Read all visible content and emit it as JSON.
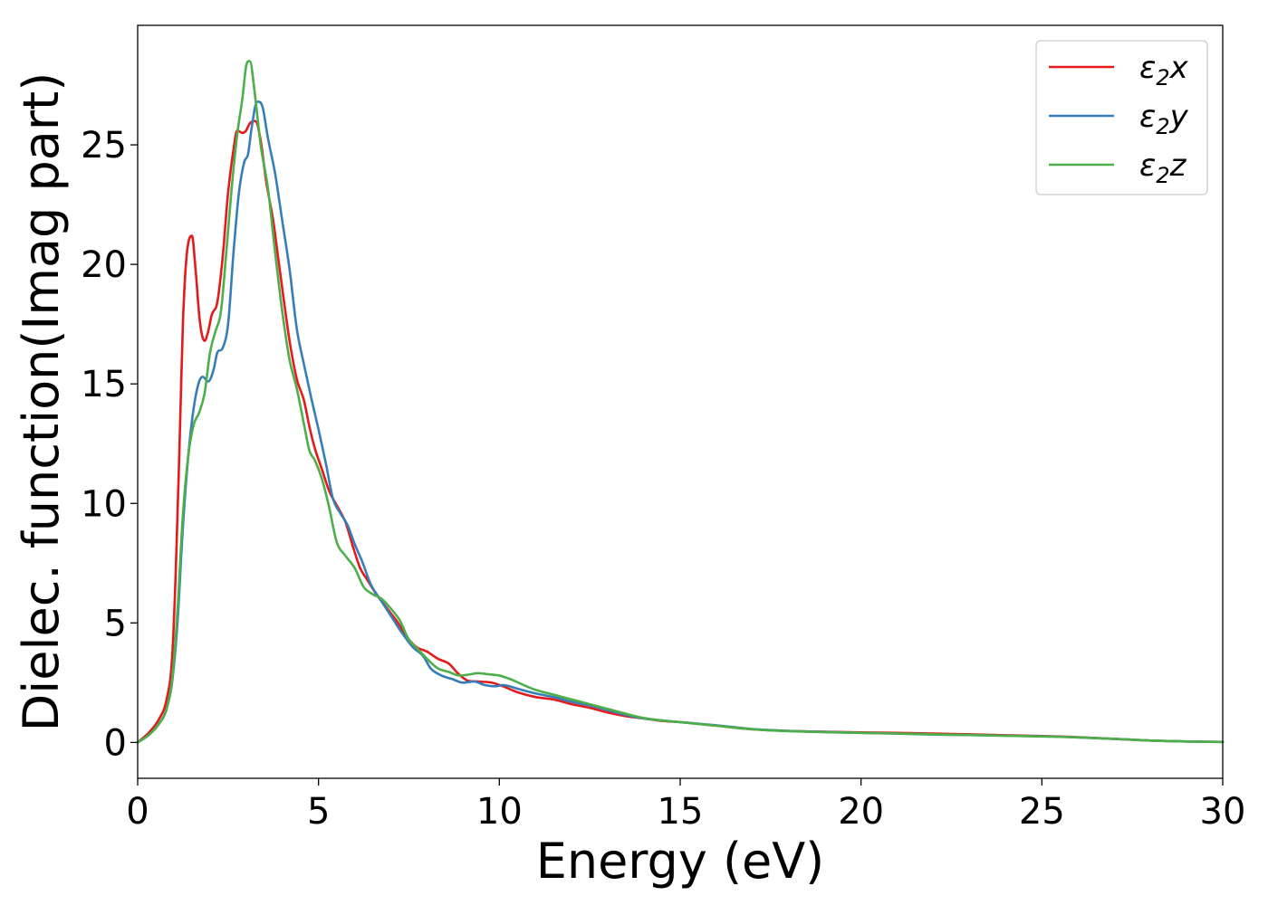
{
  "chart_data": {
    "type": "line",
    "title": "",
    "xlabel": "Energy (eV)",
    "ylabel": "Dielec. function(Imag part)",
    "xlim": [
      0,
      30
    ],
    "ylim": [
      -1.5,
      30
    ],
    "xticks": [
      0,
      5,
      10,
      15,
      20,
      25,
      30
    ],
    "yticks": [
      0,
      5,
      10,
      15,
      20,
      25
    ],
    "grid": false,
    "legend_position": "top-right",
    "series": [
      {
        "name": "ε2x",
        "color": "#e41a1c",
        "points": [
          [
            0,
            0
          ],
          [
            0.3,
            0.4
          ],
          [
            0.6,
            1.0
          ],
          [
            0.8,
            1.8
          ],
          [
            0.95,
            3.5
          ],
          [
            1.05,
            7
          ],
          [
            1.15,
            12
          ],
          [
            1.25,
            17.5
          ],
          [
            1.35,
            20.3
          ],
          [
            1.5,
            21.2
          ],
          [
            1.6,
            19.8
          ],
          [
            1.72,
            17.6
          ],
          [
            1.85,
            16.8
          ],
          [
            1.95,
            17.2
          ],
          [
            2.05,
            17.9
          ],
          [
            2.2,
            18.4
          ],
          [
            2.35,
            20.3
          ],
          [
            2.5,
            23
          ],
          [
            2.65,
            24.8
          ],
          [
            2.75,
            25.6
          ],
          [
            2.9,
            25.5
          ],
          [
            3.0,
            25.6
          ],
          [
            3.1,
            25.9
          ],
          [
            3.25,
            26.0
          ],
          [
            3.4,
            25.2
          ],
          [
            3.55,
            23.5
          ],
          [
            3.75,
            21.8
          ],
          [
            3.9,
            20.1
          ],
          [
            4.05,
            18.4
          ],
          [
            4.2,
            16.8
          ],
          [
            4.4,
            15.2
          ],
          [
            4.6,
            14.3
          ],
          [
            4.75,
            13.2
          ],
          [
            4.9,
            12.3
          ],
          [
            5.1,
            11.4
          ],
          [
            5.3,
            10.5
          ],
          [
            5.55,
            9.8
          ],
          [
            5.75,
            9.2
          ],
          [
            5.95,
            8.2
          ],
          [
            6.15,
            7.3
          ],
          [
            6.35,
            6.8
          ],
          [
            6.6,
            6.2
          ],
          [
            6.9,
            5.6
          ],
          [
            7.2,
            5.0
          ],
          [
            7.45,
            4.4
          ],
          [
            7.7,
            4.0
          ],
          [
            8.0,
            3.8
          ],
          [
            8.3,
            3.5
          ],
          [
            8.6,
            3.3
          ],
          [
            8.85,
            2.9
          ],
          [
            9.1,
            2.6
          ],
          [
            9.4,
            2.55
          ],
          [
            9.8,
            2.5
          ],
          [
            10.1,
            2.35
          ],
          [
            10.5,
            2.1
          ],
          [
            11,
            1.9
          ],
          [
            11.5,
            1.8
          ],
          [
            12,
            1.6
          ],
          [
            12.5,
            1.45
          ],
          [
            13,
            1.25
          ],
          [
            13.5,
            1.1
          ],
          [
            14,
            1.0
          ],
          [
            14.5,
            0.9
          ],
          [
            15,
            0.85
          ],
          [
            16,
            0.7
          ],
          [
            17,
            0.55
          ],
          [
            18,
            0.48
          ],
          [
            19,
            0.45
          ],
          [
            20,
            0.42
          ],
          [
            21,
            0.4
          ],
          [
            22,
            0.37
          ],
          [
            23,
            0.34
          ],
          [
            24,
            0.3
          ],
          [
            25,
            0.27
          ],
          [
            26,
            0.22
          ],
          [
            27,
            0.15
          ],
          [
            28,
            0.08
          ],
          [
            29,
            0.04
          ],
          [
            30,
            0.02
          ]
        ]
      },
      {
        "name": "ε2y",
        "color": "#377eb8",
        "points": [
          [
            0,
            0
          ],
          [
            0.3,
            0.3
          ],
          [
            0.6,
            0.8
          ],
          [
            0.8,
            1.4
          ],
          [
            0.95,
            2.5
          ],
          [
            1.1,
            5.0
          ],
          [
            1.25,
            9.0
          ],
          [
            1.4,
            12.0
          ],
          [
            1.55,
            14.0
          ],
          [
            1.7,
            15.1
          ],
          [
            1.8,
            15.3
          ],
          [
            1.95,
            15.1
          ],
          [
            2.1,
            15.6
          ],
          [
            2.2,
            16.3
          ],
          [
            2.35,
            16.5
          ],
          [
            2.5,
            17.5
          ],
          [
            2.65,
            20.5
          ],
          [
            2.8,
            23.0
          ],
          [
            2.95,
            24.3
          ],
          [
            3.05,
            24.6
          ],
          [
            3.15,
            25.7
          ],
          [
            3.3,
            26.8
          ],
          [
            3.45,
            26.6
          ],
          [
            3.6,
            25.3
          ],
          [
            3.8,
            23.8
          ],
          [
            4.0,
            21.8
          ],
          [
            4.2,
            19.8
          ],
          [
            4.4,
            17.3
          ],
          [
            4.6,
            15.8
          ],
          [
            4.8,
            14.4
          ],
          [
            5.0,
            13.1
          ],
          [
            5.2,
            11.7
          ],
          [
            5.4,
            10.2
          ],
          [
            5.6,
            9.6
          ],
          [
            5.8,
            9.1
          ],
          [
            6.0,
            8.3
          ],
          [
            6.2,
            7.6
          ],
          [
            6.45,
            6.6
          ],
          [
            6.7,
            6.0
          ],
          [
            7.0,
            5.3
          ],
          [
            7.3,
            4.6
          ],
          [
            7.6,
            4.0
          ],
          [
            7.9,
            3.6
          ],
          [
            8.1,
            3.1
          ],
          [
            8.4,
            2.8
          ],
          [
            8.7,
            2.65
          ],
          [
            9.0,
            2.5
          ],
          [
            9.3,
            2.55
          ],
          [
            9.6,
            2.4
          ],
          [
            9.9,
            2.35
          ],
          [
            10.1,
            2.4
          ],
          [
            10.5,
            2.25
          ],
          [
            11,
            2.05
          ],
          [
            11.5,
            1.9
          ],
          [
            12,
            1.7
          ],
          [
            12.5,
            1.55
          ],
          [
            13,
            1.35
          ],
          [
            13.5,
            1.15
          ],
          [
            14,
            1.0
          ],
          [
            14.5,
            0.92
          ],
          [
            15,
            0.85
          ],
          [
            16,
            0.72
          ],
          [
            17,
            0.56
          ],
          [
            18,
            0.48
          ],
          [
            19,
            0.44
          ],
          [
            20,
            0.4
          ],
          [
            21,
            0.37
          ],
          [
            22,
            0.33
          ],
          [
            23,
            0.31
          ],
          [
            24,
            0.28
          ],
          [
            25,
            0.26
          ],
          [
            26,
            0.21
          ],
          [
            27,
            0.15
          ],
          [
            28,
            0.08
          ],
          [
            29,
            0.04
          ],
          [
            30,
            0.02
          ]
        ]
      },
      {
        "name": "ε2z",
        "color": "#4daf4a",
        "points": [
          [
            0,
            0
          ],
          [
            0.3,
            0.3
          ],
          [
            0.6,
            0.8
          ],
          [
            0.8,
            1.4
          ],
          [
            0.95,
            2.6
          ],
          [
            1.1,
            5.5
          ],
          [
            1.25,
            9.5
          ],
          [
            1.4,
            12.0
          ],
          [
            1.55,
            13.3
          ],
          [
            1.7,
            13.8
          ],
          [
            1.85,
            14.6
          ],
          [
            2.0,
            16.3
          ],
          [
            2.15,
            17.2
          ],
          [
            2.3,
            18.0
          ],
          [
            2.45,
            20.5
          ],
          [
            2.6,
            23.2
          ],
          [
            2.75,
            25.4
          ],
          [
            2.9,
            27.0
          ],
          [
            3.0,
            28.3
          ],
          [
            3.1,
            28.5
          ],
          [
            3.25,
            27.0
          ],
          [
            3.4,
            25.0
          ],
          [
            3.6,
            23.2
          ],
          [
            3.8,
            20.5
          ],
          [
            4.0,
            18.0
          ],
          [
            4.2,
            16.0
          ],
          [
            4.4,
            14.8
          ],
          [
            4.6,
            13.3
          ],
          [
            4.75,
            12.2
          ],
          [
            4.9,
            11.8
          ],
          [
            5.1,
            11.0
          ],
          [
            5.3,
            9.8
          ],
          [
            5.5,
            8.4
          ],
          [
            5.75,
            7.8
          ],
          [
            6.0,
            7.3
          ],
          [
            6.25,
            6.5
          ],
          [
            6.5,
            6.2
          ],
          [
            6.75,
            6.0
          ],
          [
            7.0,
            5.6
          ],
          [
            7.25,
            5.1
          ],
          [
            7.5,
            4.3
          ],
          [
            7.75,
            3.9
          ],
          [
            8.0,
            3.5
          ],
          [
            8.3,
            3.1
          ],
          [
            8.6,
            2.95
          ],
          [
            8.9,
            2.8
          ],
          [
            9.2,
            2.85
          ],
          [
            9.4,
            2.9
          ],
          [
            9.7,
            2.85
          ],
          [
            10.0,
            2.8
          ],
          [
            10.3,
            2.65
          ],
          [
            10.6,
            2.45
          ],
          [
            11,
            2.2
          ],
          [
            11.5,
            2.0
          ],
          [
            12,
            1.8
          ],
          [
            12.5,
            1.6
          ],
          [
            13,
            1.4
          ],
          [
            13.5,
            1.2
          ],
          [
            14,
            1.02
          ],
          [
            14.5,
            0.92
          ],
          [
            15,
            0.85
          ],
          [
            16,
            0.7
          ],
          [
            17,
            0.55
          ],
          [
            18,
            0.47
          ],
          [
            19,
            0.43
          ],
          [
            20,
            0.4
          ],
          [
            21,
            0.37
          ],
          [
            22,
            0.34
          ],
          [
            23,
            0.31
          ],
          [
            24,
            0.28
          ],
          [
            25,
            0.25
          ],
          [
            26,
            0.21
          ],
          [
            27,
            0.15
          ],
          [
            28,
            0.08
          ],
          [
            29,
            0.04
          ],
          [
            30,
            0.02
          ]
        ]
      }
    ]
  }
}
